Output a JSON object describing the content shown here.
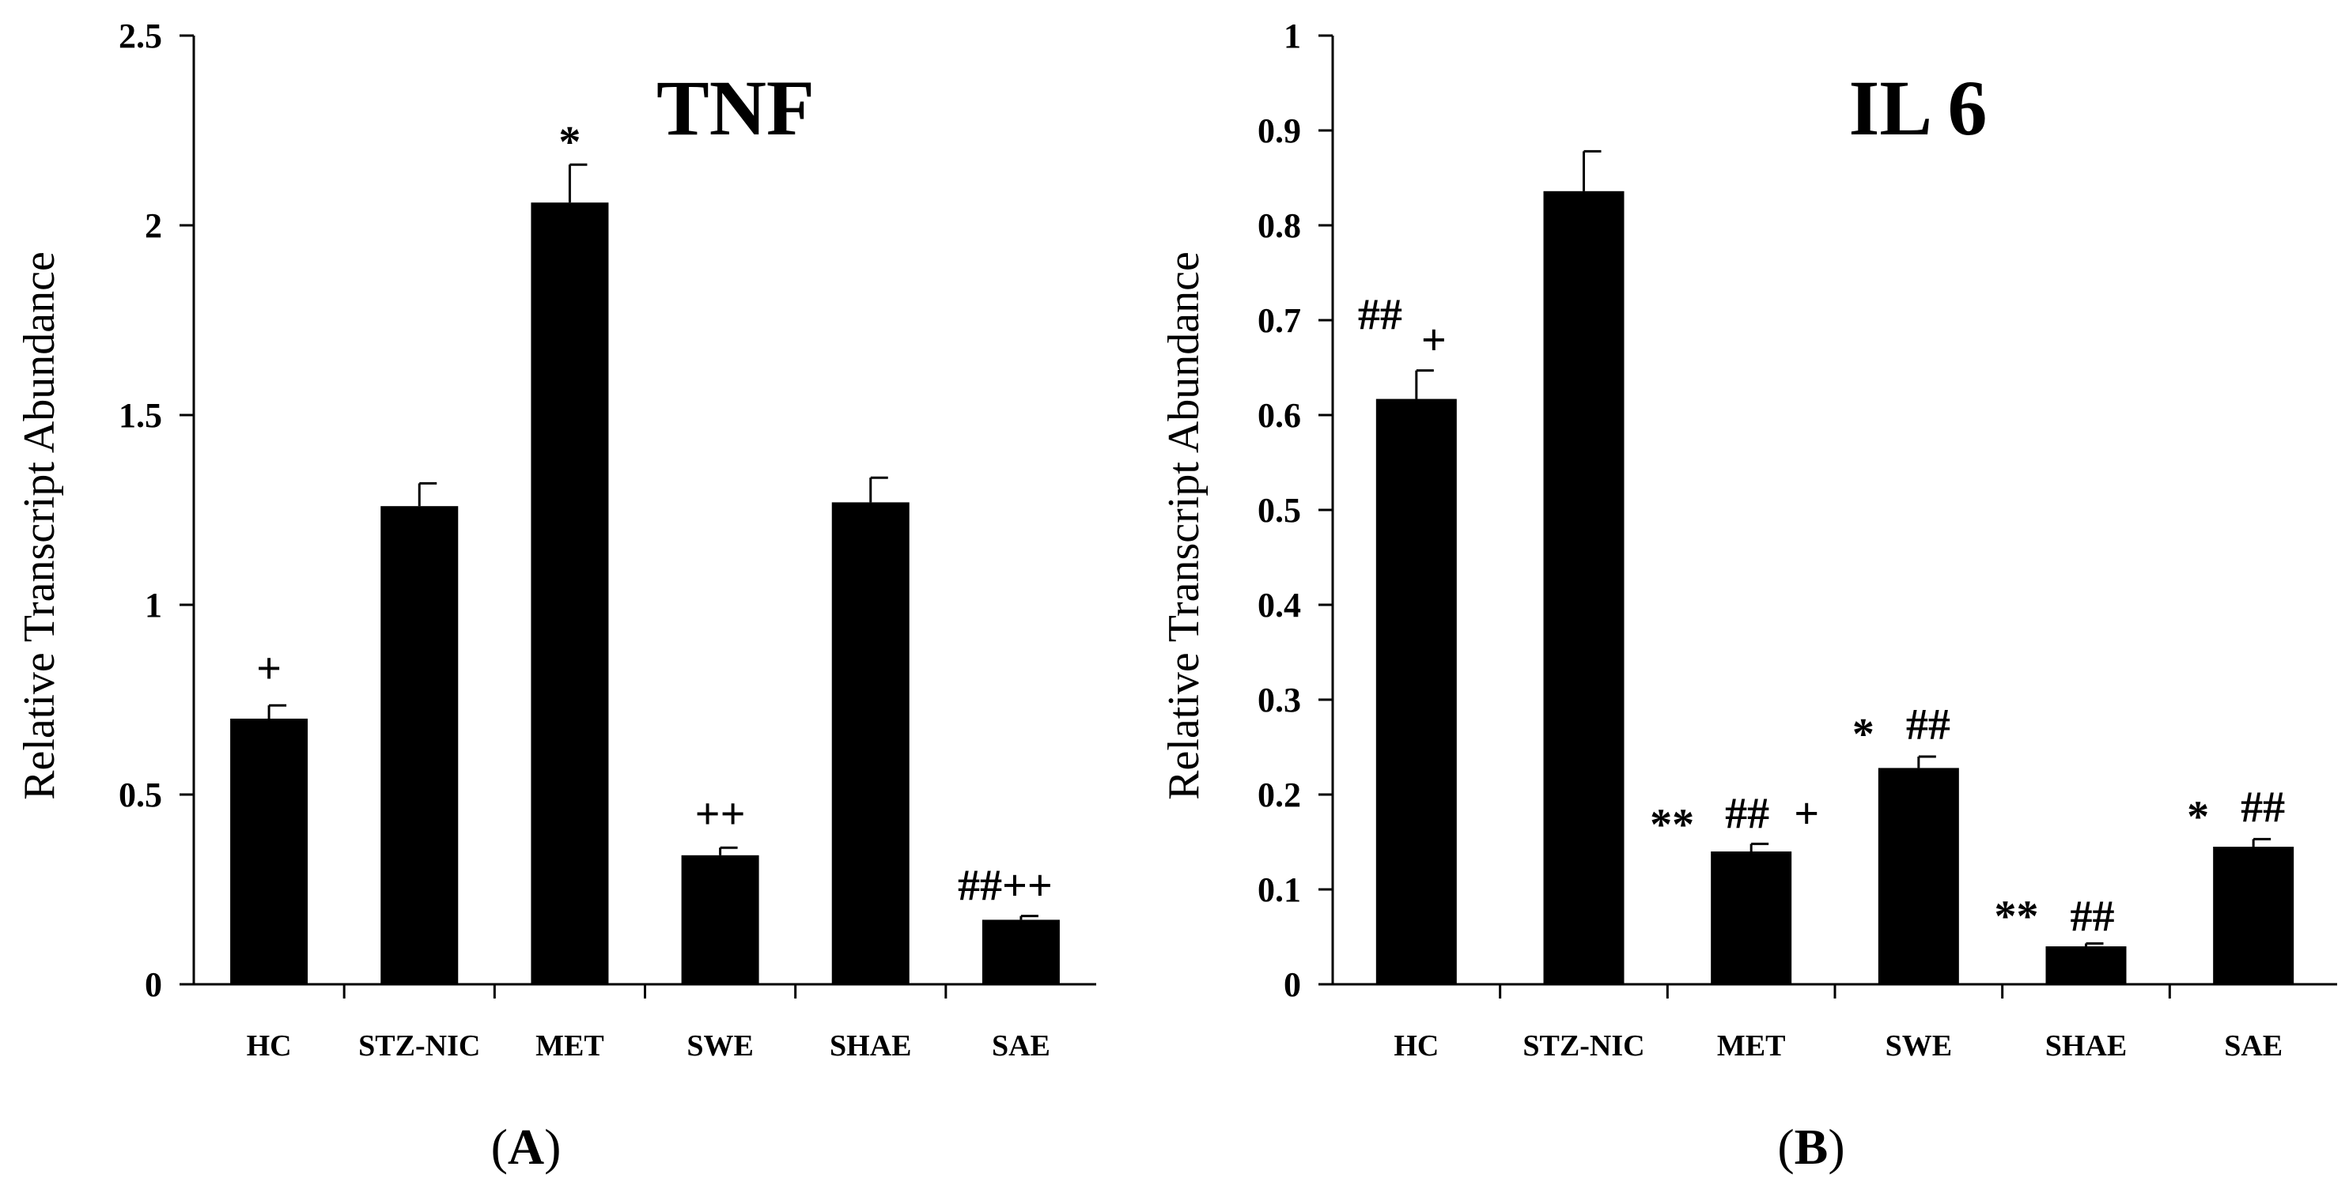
{
  "chart_data": [
    {
      "type": "bar",
      "title": "TNF",
      "panel_label": "A",
      "xlabel": "",
      "ylabel": "Relative Transcript Abundance",
      "ylim": [
        0,
        2.5
      ],
      "yticks": [
        "0",
        "0.5",
        "1",
        "1.5",
        "2",
        "2.5"
      ],
      "categories": [
        "HC",
        "STZ-NIC",
        "MET",
        "SWE",
        "SHAE",
        "SAE"
      ],
      "values": [
        0.7,
        1.26,
        2.06,
        0.34,
        1.27,
        0.17
      ],
      "errors": [
        0.035,
        0.06,
        0.1,
        0.02,
        0.065,
        0.01
      ],
      "annotations": [
        "+",
        "",
        "*",
        "++",
        "",
        "##++"
      ]
    },
    {
      "type": "bar",
      "title": "IL 6",
      "panel_label": "B",
      "xlabel": "",
      "ylabel": "Relative Transcript Abundance",
      "ylim": [
        0,
        1
      ],
      "yticks": [
        "0",
        "0.1",
        "0.2",
        "0.3",
        "0.4",
        "0.5",
        "0.6",
        "0.7",
        "0.8",
        "0.9",
        "1"
      ],
      "categories": [
        "HC",
        "STZ-NIC",
        "MET",
        "SWE",
        "SHAE",
        "SAE"
      ],
      "values": [
        0.617,
        0.836,
        0.14,
        0.228,
        0.04,
        0.145
      ],
      "errors": [
        0.03,
        0.042,
        0.008,
        0.012,
        0.003,
        0.008
      ],
      "annotations": [
        "##+",
        "",
        "** ## +",
        "* ##",
        "** ##",
        "* ##"
      ]
    }
  ]
}
